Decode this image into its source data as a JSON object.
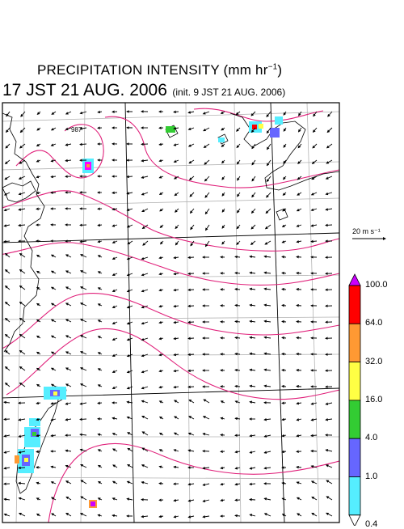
{
  "title": {
    "main": "PRECIPITATION INTENSITY (mm hr",
    "exponent": "−1",
    "close": ")"
  },
  "subtitle": {
    "time": "17 JST 21 AUG. 2006",
    "init": "(init. 9 JST 21 AUG. 2006)"
  },
  "wind_reference": {
    "label": "20 m s⁻¹"
  },
  "pressure_label": "987",
  "colorbar": {
    "levels": [
      "100.0",
      "64.0",
      "32.0",
      "16.0",
      "4.0",
      "1.0",
      "0.4"
    ],
    "colors": [
      "#cc00ff",
      "#ff0000",
      "#ff9933",
      "#ffff44",
      "#33cc33",
      "#6666ff",
      "#55eeff"
    ]
  },
  "colors": {
    "contour": "#e0207a",
    "coast": "#000000",
    "grid": "#000000",
    "latlon": "#b0b0b0"
  },
  "icons": {
    "wind_vector": "arrow-icon",
    "colorbar_top": "triangle-up",
    "colorbar_bottom": "triangle-down"
  }
}
